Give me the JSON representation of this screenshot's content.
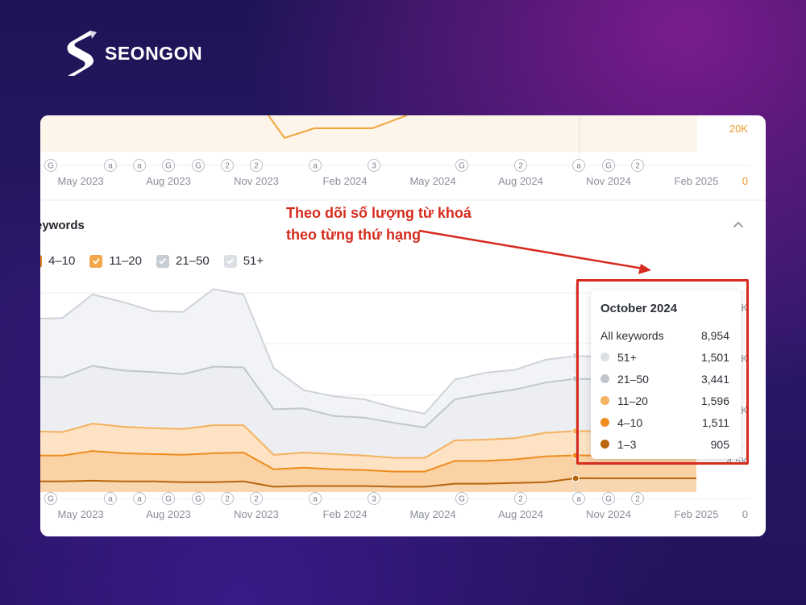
{
  "brand": {
    "name": "SEONGON"
  },
  "annotation": {
    "line1": "Theo dõi số lượng từ khoá",
    "line2": "theo từng thứ hạng"
  },
  "section": {
    "title": "eywords"
  },
  "legend": [
    {
      "label": "4–10",
      "color": "#e8862a"
    },
    {
      "label": "11–20",
      "color": "#f2a84a"
    },
    {
      "label": "21–50",
      "color": "#c8ccd3"
    },
    {
      "label": "51+",
      "color": "#dcdfe4"
    }
  ],
  "top_axis": {
    "ticks": [
      "May 2023",
      "Aug 2023",
      "Nov 2023",
      "Feb 2024",
      "May 2024",
      "Aug 2024",
      "Nov 2024",
      "Feb 2025"
    ],
    "right_labels": [
      "20K",
      "0"
    ]
  },
  "bottom_axis": {
    "ticks": [
      "May 2023",
      "Aug 2023",
      "Nov 2023",
      "Feb 2024",
      "May 2024",
      "Aug 2024",
      "Nov 2024",
      "Feb 2025"
    ],
    "right_labels": [
      "3K",
      "5K",
      "9K",
      "4.5K",
      "0"
    ]
  },
  "markers": [
    "G",
    "a",
    "a",
    "G",
    "G",
    "2",
    "2",
    "a",
    "3",
    "G",
    "2",
    "a",
    "G",
    "2"
  ],
  "tooltip": {
    "title": "October 2024",
    "total_label": "All keywords",
    "total_value": "8,954",
    "rows": [
      {
        "label": "51+",
        "value": "1,501",
        "color": "#dcdfe4"
      },
      {
        "label": "21–50",
        "value": "3,441",
        "color": "#c1c6ce"
      },
      {
        "label": "11–20",
        "value": "1,596",
        "color": "#f5b25f"
      },
      {
        "label": "4–10",
        "value": "1,511",
        "color": "#ee8c1e"
      },
      {
        "label": "1–3",
        "value": "905",
        "color": "#b9650e"
      }
    ]
  },
  "chart_data": {
    "type": "area",
    "x": [
      "Apr 2023",
      "May 2023",
      "Jun 2023",
      "Jul 2023",
      "Aug 2023",
      "Sep 2023",
      "Oct 2023",
      "Nov 2023",
      "Dec 2023",
      "Jan 2024",
      "Feb 2024",
      "Mar 2024",
      "Apr 2024",
      "May 2024",
      "Jun 2024",
      "Jul 2024",
      "Aug 2024",
      "Sep 2024",
      "Oct 2024",
      "Nov 2024",
      "Dec 2024",
      "Jan 2025",
      "Feb 2025"
    ],
    "series": [
      {
        "name": "1–3",
        "values": [
          700,
          700,
          750,
          700,
          700,
          650,
          650,
          700,
          350,
          400,
          400,
          400,
          350,
          350,
          550,
          550,
          600,
          650,
          905,
          900,
          900,
          900,
          900
        ]
      },
      {
        "name": "4–10",
        "values": [
          1700,
          1700,
          1950,
          1850,
          1800,
          1800,
          1900,
          1900,
          1150,
          1200,
          1100,
          1050,
          1000,
          1000,
          1500,
          1500,
          1550,
          1700,
          1511,
          1500,
          1500,
          1500,
          1500
        ]
      },
      {
        "name": "11–20",
        "values": [
          1600,
          1550,
          1800,
          1750,
          1700,
          1700,
          1850,
          1800,
          950,
          1000,
          1000,
          950,
          900,
          900,
          1350,
          1400,
          1400,
          1550,
          1596,
          1600,
          1600,
          1600,
          1600
        ]
      },
      {
        "name": "21–50",
        "values": [
          3600,
          3600,
          3800,
          3700,
          3700,
          3600,
          3850,
          3800,
          3000,
          2900,
          2500,
          2500,
          2300,
          2000,
          2700,
          3000,
          3200,
          3300,
          3441,
          3400,
          3400,
          3400,
          3400
        ]
      },
      {
        "name": "51+",
        "values": [
          3800,
          3900,
          4700,
          4500,
          4000,
          4100,
          5100,
          4800,
          2700,
          1200,
          1300,
          1200,
          1000,
          900,
          1300,
          1400,
          1300,
          1500,
          1501,
          1500,
          1500,
          1500,
          1500
        ]
      }
    ]
  }
}
